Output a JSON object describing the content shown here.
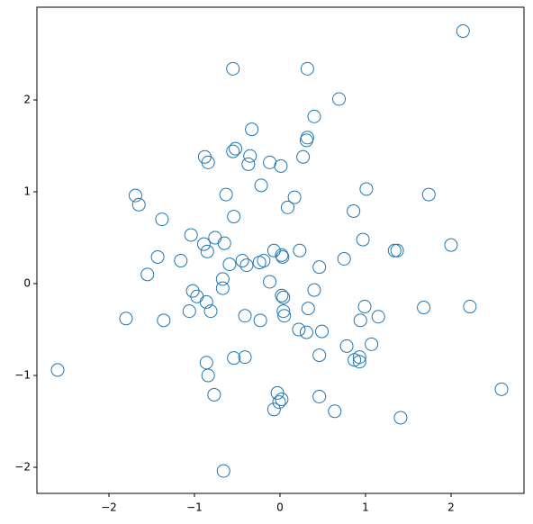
{
  "chart_data": {
    "type": "scatter",
    "color": "#1f77b4",
    "x": [
      2.14,
      -0.55,
      0.32,
      0.69,
      0.4,
      -0.33,
      0.32,
      0.31,
      -0.52,
      -0.55,
      -0.88,
      -0.84,
      -0.35,
      -0.37,
      -0.12,
      0.01,
      0.27,
      -0.22,
      1.01,
      1.74,
      -1.69,
      -1.65,
      -0.63,
      0.17,
      0.09,
      0.86,
      -0.54,
      -1.38,
      -1.04,
      -0.76,
      -0.65,
      -0.89,
      -0.85,
      -0.07,
      0.23,
      0.97,
      1.34,
      1.37,
      2.0,
      -1.43,
      -1.16,
      -1.55,
      -0.59,
      -0.44,
      -0.39,
      -0.24,
      -0.19,
      0.02,
      0.03,
      0.75,
      0.46,
      -0.67,
      -0.67,
      -0.12,
      -1.02,
      -0.97,
      -0.86,
      -0.81,
      -1.06,
      0.4,
      0.02,
      0.04,
      0.04,
      0.05,
      0.33,
      0.99,
      1.68,
      2.22,
      -1.8,
      -1.36,
      -0.41,
      -0.23,
      1.15,
      0.94,
      0.22,
      0.31,
      0.49,
      0.78,
      1.07,
      0.46,
      0.87,
      0.93,
      0.93,
      -0.54,
      -0.41,
      -0.86,
      -2.6,
      -0.84,
      -0.77,
      -0.03,
      0.02,
      -0.01,
      -0.07,
      0.46,
      0.64,
      1.41,
      2.59,
      -0.66
    ],
    "values": [
      2.75,
      2.34,
      2.34,
      2.01,
      1.82,
      1.68,
      1.59,
      1.56,
      1.47,
      1.44,
      1.38,
      1.32,
      1.39,
      1.3,
      1.32,
      1.28,
      1.38,
      1.07,
      1.03,
      0.97,
      0.96,
      0.86,
      0.97,
      0.94,
      0.83,
      0.79,
      0.73,
      0.7,
      0.53,
      0.5,
      0.44,
      0.43,
      0.35,
      0.36,
      0.36,
      0.48,
      0.36,
      0.36,
      0.42,
      0.29,
      0.25,
      0.1,
      0.21,
      0.25,
      0.2,
      0.23,
      0.25,
      0.31,
      0.29,
      0.27,
      0.18,
      0.05,
      -0.05,
      0.02,
      -0.08,
      -0.14,
      -0.2,
      -0.3,
      -0.3,
      -0.07,
      -0.13,
      -0.15,
      -0.3,
      -0.35,
      -0.27,
      -0.25,
      -0.26,
      -0.25,
      -0.38,
      -0.4,
      -0.35,
      -0.4,
      -0.36,
      -0.4,
      -0.5,
      -0.53,
      -0.52,
      -0.68,
      -0.66,
      -0.78,
      -0.83,
      -0.8,
      -0.85,
      -0.81,
      -0.8,
      -0.86,
      -0.94,
      -1.0,
      -1.21,
      -1.19,
      -1.26,
      -1.29,
      -1.37,
      -1.23,
      -1.39,
      -1.46,
      -1.15,
      -2.04
    ],
    "xlim": [
      -2.842,
      2.853
    ],
    "ylim": [
      -2.284,
      3.01
    ],
    "xticks": [
      {
        "value": -2,
        "label": "−2"
      },
      {
        "value": -1,
        "label": "−1"
      },
      0,
      1,
      2
    ],
    "yticks": [
      {
        "value": -2,
        "label": "−2"
      },
      {
        "value": -1,
        "label": "−1"
      },
      0,
      1,
      2
    ]
  }
}
